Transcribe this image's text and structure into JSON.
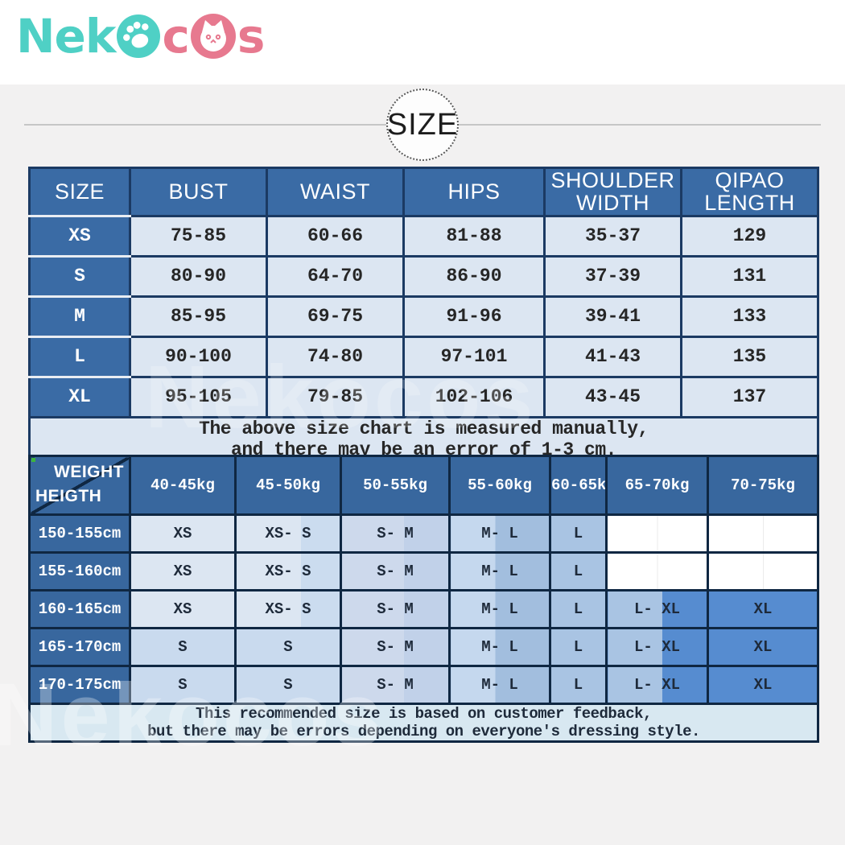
{
  "logo": {
    "text_teal": "Nek",
    "text_pink_c": "c",
    "text_pink_s": "s",
    "teal_color": "#4fd0c5",
    "pink_color": "#e7798f"
  },
  "section_badge": {
    "label": "SIZE"
  },
  "watermark": {
    "text": "Nekocos"
  },
  "size_table": {
    "header_color": "#3a6ba5",
    "cell_color": "#dce6f2",
    "border_color": "#1b3a63",
    "columns": [
      "SIZE",
      "BUST",
      "WAIST",
      "HIPS",
      "SHOULDER WIDTH",
      "QIPAO LENGTH"
    ],
    "rows": [
      {
        "label": "XS",
        "values": [
          "75-85",
          "60-66",
          "81-88",
          "35-37",
          "129"
        ]
      },
      {
        "label": "S",
        "values": [
          "80-90",
          "64-70",
          "86-90",
          "37-39",
          "131"
        ]
      },
      {
        "label": "M",
        "values": [
          "85-95",
          "69-75",
          "91-96",
          "39-41",
          "133"
        ]
      },
      {
        "label": "L",
        "values": [
          "90-100",
          "74-80",
          "97-101",
          "41-43",
          "135"
        ]
      },
      {
        "label": "XL",
        "values": [
          "95-105",
          "79-85",
          "102-106",
          "43-45",
          "137"
        ]
      }
    ],
    "note_line1": "The above size chart is measured manually,",
    "note_line2": "and there may be an error of 1-3 cm."
  },
  "recommend_table": {
    "corner_top": "WEIGHT",
    "corner_bottom": "HEIGTH",
    "strong_color": "#568cd0",
    "columns": [
      "40-45kg",
      "45-50kg",
      "50-55kg",
      "55-60kg",
      "60-65kg",
      "65-70kg",
      "70-75kg"
    ],
    "rows": [
      {
        "height": "150-155cm",
        "cells": [
          {
            "label": "XS",
            "tone": "xs"
          },
          {
            "label": "XS- S",
            "tone": "xss"
          },
          {
            "label": "S- M",
            "tone": "sm"
          },
          {
            "label": "M- L",
            "tone": "ml"
          },
          {
            "label": "L",
            "tone": "l"
          },
          {
            "label": "",
            "tone": "empty"
          },
          {
            "label": "",
            "tone": "empty"
          }
        ]
      },
      {
        "height": "155-160cm",
        "cells": [
          {
            "label": "XS",
            "tone": "xs"
          },
          {
            "label": "XS- S",
            "tone": "xss"
          },
          {
            "label": "S- M",
            "tone": "sm"
          },
          {
            "label": "M- L",
            "tone": "ml"
          },
          {
            "label": "L",
            "tone": "l"
          },
          {
            "label": "",
            "tone": "empty2"
          },
          {
            "label": "",
            "tone": "empty2"
          }
        ]
      },
      {
        "height": "160-165cm",
        "cells": [
          {
            "label": "XS",
            "tone": "xs"
          },
          {
            "label": "XS- S",
            "tone": "xss"
          },
          {
            "label": "S- M",
            "tone": "sm"
          },
          {
            "label": "M- L",
            "tone": "ml"
          },
          {
            "label": "L",
            "tone": "l"
          },
          {
            "label": "L- XL",
            "tone": "lxl"
          },
          {
            "label": "XL",
            "tone": "xl"
          }
        ]
      },
      {
        "height": "165-170cm",
        "cells": [
          {
            "label": "S",
            "tone": "s"
          },
          {
            "label": "S",
            "tone": "s"
          },
          {
            "label": "S- M",
            "tone": "sm"
          },
          {
            "label": "M- L",
            "tone": "ml"
          },
          {
            "label": "L",
            "tone": "l"
          },
          {
            "label": "L- XL",
            "tone": "lxl"
          },
          {
            "label": "XL",
            "tone": "xl"
          }
        ]
      },
      {
        "height": "170-175cm",
        "cells": [
          {
            "label": "S",
            "tone": "s"
          },
          {
            "label": "S",
            "tone": "s"
          },
          {
            "label": "S- M",
            "tone": "sm"
          },
          {
            "label": "M- L",
            "tone": "ml"
          },
          {
            "label": "L",
            "tone": "l"
          },
          {
            "label": "L- XL",
            "tone": "lxl"
          },
          {
            "label": "XL",
            "tone": "xl"
          }
        ]
      }
    ],
    "note_line1": "This recommended size is based on customer feedback,",
    "note_line2": "but there may be errors depending on everyone's dressing style."
  }
}
